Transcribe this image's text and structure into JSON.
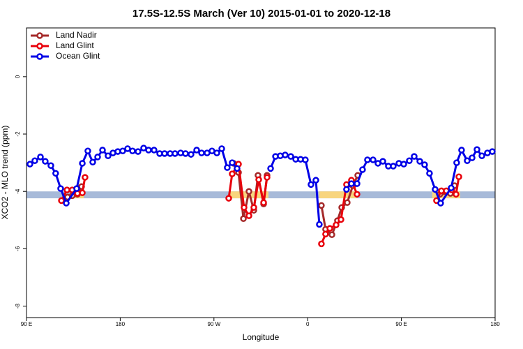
{
  "chart_data": {
    "type": "line",
    "title": "17.5S-12.5S March (Ver 10)   2015-01-01 to 2020-12-18",
    "xlabel": "Longitude",
    "ylabel": "XCO2 - MLO trend (ppm)",
    "xlim": [
      90,
      540
    ],
    "ylim": [
      -8.4,
      1.7
    ],
    "xticks": [
      {
        "value": 90,
        "label": "90 E"
      },
      180,
      {
        "value": 270,
        "label": "90 W"
      },
      {
        "value": 360,
        "label": "0"
      },
      {
        "value": 450,
        "label": "90 E"
      },
      {
        "value": 540,
        "label": "180"
      }
    ],
    "yticks": [
      0,
      -2,
      -4,
      -6,
      -8
    ],
    "grid": false,
    "legend": "top-left",
    "bands": [
      {
        "x": [
          90,
          540
        ],
        "y": [
          -4.24,
          -4.0
        ],
        "color": "#a7bad9"
      },
      {
        "x": [
          131.5,
          145
        ],
        "y": [
          -4.24,
          -4.0
        ],
        "color": "#f8d57e"
      },
      {
        "x": [
          285.5,
          322.3
        ],
        "y": [
          -4.24,
          -4.0
        ],
        "color": "#f8d57e"
      },
      {
        "x": [
          371,
          407
        ],
        "y": [
          -4.24,
          -4.0
        ],
        "color": "#f8d57e"
      },
      {
        "x": [
          479.7,
          506.5
        ],
        "y": [
          -4.24,
          -4.0
        ],
        "color": "#f8d57e"
      }
    ],
    "series": [
      {
        "name": "Land Nadir",
        "color": "#a52a2a",
        "x": [
          129.5,
          133.9,
          138.9,
          142.9,
          null,
          288.9,
          293.6,
          298.3,
          303.6,
          308.3,
          312.3,
          317.7,
          321,
          null,
          373.2,
          377.2,
          383.3,
          388.6,
          392.7,
          398,
          403.4,
          408.1,
          null,
          487,
          497.1,
          501.1
        ],
        "values": [
          -4.2,
          -4.15,
          -4.1,
          -3.83,
          null,
          -3.02,
          -3.34,
          -4.95,
          -4.0,
          -4.66,
          -3.44,
          -4.44,
          -3.44,
          null,
          -4.49,
          -5.32,
          -5.51,
          -5.02,
          -4.56,
          -4.39,
          -3.8,
          -3.44,
          null,
          -4.1,
          -4.07,
          -3.8
        ]
      },
      {
        "name": "Land Glint",
        "color": "#e8000b",
        "x": [
          123.5,
          128.9,
          133.9,
          138.9,
          143.6,
          146.2,
          null,
          284.2,
          287.5,
          293.6,
          298.9,
          303.6,
          308.3,
          313,
          317.7,
          321,
          null,
          373.2,
          377.2,
          381.3,
          387.3,
          392,
          397.3,
          402,
          407.4,
          null,
          483.7,
          488.4,
          493.1,
          498.5,
          502.5,
          505.2
        ],
        "values": [
          -4.32,
          -3.95,
          -3.95,
          -4.07,
          -4.05,
          -3.51,
          null,
          -4.24,
          -3.39,
          -3.05,
          -4.56,
          -4.85,
          -4.56,
          -3.59,
          -4.39,
          -3.51,
          null,
          -5.83,
          -5.49,
          -5.29,
          -5.17,
          -4.98,
          -3.76,
          -3.61,
          -4.1,
          null,
          -4.32,
          -3.98,
          -3.98,
          -3.95,
          -4.1,
          -3.49
        ]
      },
      {
        "name": "Ocean Glint",
        "color": "#0000e6",
        "x": [
          93.3,
          98,
          103.4,
          108,
          113.4,
          118,
          122.8,
          128.2,
          138.2,
          143.6,
          148.9,
          153.6,
          158.3,
          163,
          168.3,
          173,
          177.7,
          182.4,
          187.1,
          191.8,
          197.1,
          202.5,
          207.2,
          212.5,
          217.9,
          222.6,
          227.9,
          232.6,
          238,
          242.7,
          248,
          253.4,
          258.1,
          263.4,
          268.1,
          272.8,
          277.5,
          282.8,
          287.5,
          292.2,
          null,
          324.4,
          329.1,
          333.7,
          338.4,
          343.8,
          348.5,
          353.2,
          357.8,
          363.2,
          367.9,
          371.2,
          null,
          397.3,
          402,
          407.4,
          412.7,
          417.4,
          422.8,
          427.5,
          432.2,
          437.5,
          442.2,
          447.6,
          452.3,
          457.6,
          462.3,
          467.7,
          472.3,
          477,
          482.4,
          487.7,
          497.8,
          503.1,
          507.8,
          513.2,
          517.9,
          522.6,
          527.3,
          532.6,
          537.3
        ],
        "values": [
          -3.05,
          -2.93,
          -2.8,
          -2.95,
          -3.1,
          -3.37,
          -3.9,
          -4.41,
          -3.9,
          -3.02,
          -2.59,
          -2.98,
          -2.8,
          -2.56,
          -2.76,
          -2.66,
          -2.61,
          -2.59,
          -2.51,
          -2.59,
          -2.61,
          -2.49,
          -2.56,
          -2.56,
          -2.68,
          -2.68,
          -2.68,
          -2.68,
          -2.66,
          -2.68,
          -2.71,
          -2.56,
          -2.66,
          -2.66,
          -2.59,
          -2.66,
          -2.51,
          -3.17,
          -3.0,
          -3.2,
          null,
          -3.2,
          -2.78,
          -2.76,
          -2.73,
          -2.78,
          -2.88,
          -2.88,
          -2.9,
          -3.76,
          -3.61,
          -5.15,
          null,
          -3.93,
          -3.73,
          -3.73,
          -3.24,
          -2.9,
          -2.9,
          -3.02,
          -2.95,
          -3.12,
          -3.12,
          -3.02,
          -3.05,
          -2.93,
          -2.78,
          -2.95,
          -3.07,
          -3.37,
          -3.93,
          -4.41,
          -3.88,
          -3.0,
          -2.56,
          -2.93,
          -2.83,
          -2.54,
          -2.76,
          -2.66,
          -2.61
        ]
      }
    ]
  }
}
